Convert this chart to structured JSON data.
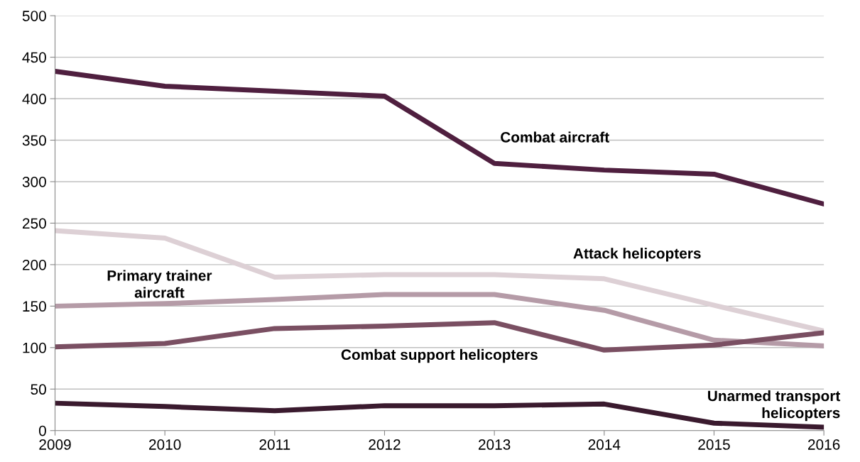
{
  "chart_data": {
    "type": "line",
    "x": [
      2009,
      2010,
      2011,
      2012,
      2013,
      2014,
      2015,
      2016
    ],
    "xlim": [
      2009,
      2016
    ],
    "xticks": [
      2009,
      2010,
      2011,
      2012,
      2013,
      2014,
      2015,
      2016
    ],
    "ylim": [
      0,
      500
    ],
    "yticks": [
      0,
      50,
      100,
      150,
      200,
      250,
      300,
      350,
      400,
      450,
      500
    ],
    "grid": "y",
    "legend": false,
    "marker": "none",
    "line_style": "solid",
    "series": [
      {
        "name": "Combat aircraft",
        "color": "#4f1f3f",
        "values": [
          433,
          415,
          409,
          403,
          322,
          314,
          309,
          273
        ]
      },
      {
        "name": "Attack helicopters",
        "color": "#ddd0d5",
        "values": [
          241,
          232,
          185,
          188,
          188,
          183,
          151,
          120
        ]
      },
      {
        "name": "Primary trainer\naircraft",
        "color": "#b59ba7",
        "values": [
          150,
          153,
          158,
          164,
          164,
          145,
          109,
          102
        ]
      },
      {
        "name": "Combat support helicopters",
        "color": "#7a4f62",
        "values": [
          101,
          105,
          123,
          126,
          130,
          97,
          103,
          118
        ]
      },
      {
        "name": "Unarmed transport\nhelicopters",
        "color": "#3a1a2e",
        "values": [
          33,
          29,
          24,
          30,
          30,
          32,
          9,
          4
        ]
      }
    ]
  }
}
